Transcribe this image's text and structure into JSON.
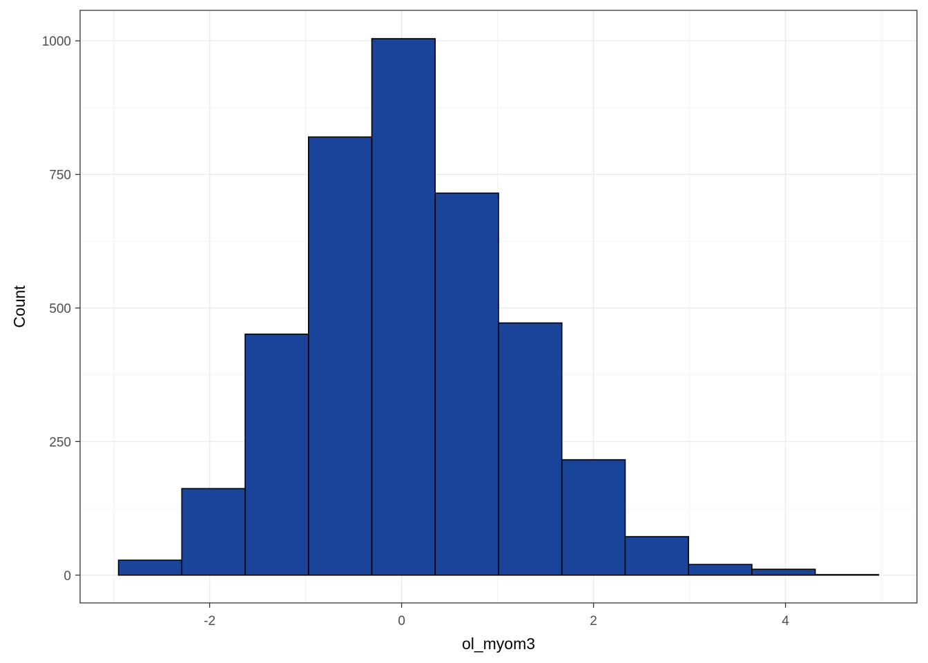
{
  "chart_data": {
    "type": "bar",
    "subtype": "histogram",
    "title": "",
    "xlabel": "ol_myom3",
    "ylabel": "Count",
    "bin_edges": [
      -2.95,
      -2.29,
      -1.63,
      -0.97,
      -0.31,
      0.35,
      1.01,
      1.67,
      2.33,
      2.99,
      3.65,
      4.31,
      4.97
    ],
    "values": [
      28,
      162,
      451,
      820,
      1004,
      715,
      472,
      216,
      72,
      20,
      11,
      1
    ],
    "xlim": [
      -3.35,
      5.37
    ],
    "ylim": [
      -52,
      1057
    ],
    "xticks": [
      -2,
      0,
      2,
      4
    ],
    "xtick_labels": [
      "-2",
      "0",
      "2",
      "4"
    ],
    "yticks": [
      0,
      250,
      500,
      750,
      1000
    ],
    "ytick_labels": [
      "0",
      "250",
      "500",
      "750",
      "1000"
    ],
    "grid": true,
    "legend": "none",
    "colors": {
      "bar_fill": "#194499",
      "bar_outline": "#000000",
      "grid_major": "#ebebeb",
      "grid_minor": "#f4f4f4",
      "panel_border": "#333333",
      "tick_label": "#4d4d4d"
    }
  }
}
